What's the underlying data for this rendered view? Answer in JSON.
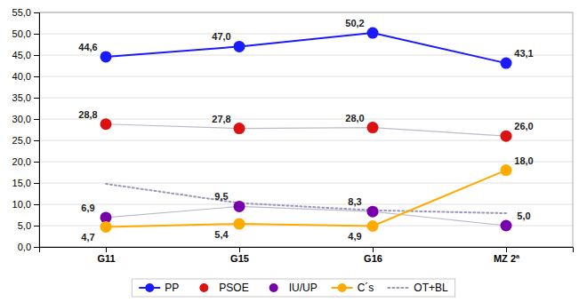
{
  "chart_data": {
    "type": "line",
    "categories": [
      "G11",
      "G15",
      "G16",
      "MZ 2ª"
    ],
    "series": [
      {
        "name": "PP",
        "color": "#1a1aff",
        "marker": "circle",
        "line_style": "solid",
        "data_labels": true,
        "values": [
          44.6,
          47.0,
          50.2,
          43.1
        ],
        "value_labels": [
          "44,6",
          "47,0",
          "50,2",
          "43,1"
        ]
      },
      {
        "name": "PSOE",
        "color": "#dd1111",
        "marker": "circle",
        "line_style": "connector",
        "data_labels": true,
        "values": [
          28.8,
          27.8,
          28.0,
          26.0
        ],
        "value_labels": [
          "28,8",
          "27,8",
          "28,0",
          "26,0"
        ]
      },
      {
        "name": "IU/UP",
        "color": "#7700aa",
        "marker": "circle",
        "line_style": "connector",
        "data_labels": true,
        "values": [
          6.9,
          9.5,
          8.3,
          5.0
        ],
        "value_labels": [
          "6,9",
          "9,5",
          "8,3",
          "5,0"
        ]
      },
      {
        "name": "C´s",
        "color": "#ffaa00",
        "marker": "circle",
        "line_style": "solid",
        "data_labels": true,
        "values": [
          4.7,
          5.4,
          4.9,
          18.0
        ],
        "value_labels": [
          "4,7",
          "5,4",
          "4,9",
          "18,0"
        ]
      },
      {
        "name": "OT+BL",
        "color": "#9999bb",
        "marker": "none",
        "line_style": "dotted",
        "data_labels": false,
        "values": [
          14.8,
          10.3,
          8.6,
          7.9
        ]
      }
    ],
    "ylim": [
      0.0,
      55.0
    ],
    "yticks": [
      {
        "value": 0.0,
        "label": "0,0"
      },
      {
        "value": 5.0,
        "label": "5,0"
      },
      {
        "value": 10.0,
        "label": "10,0"
      },
      {
        "value": 15.0,
        "label": "15,0"
      },
      {
        "value": 20.0,
        "label": "20,0"
      },
      {
        "value": 25.0,
        "label": "25,0"
      },
      {
        "value": 30.0,
        "label": "30,0"
      },
      {
        "value": 35.0,
        "label": "35,0"
      },
      {
        "value": 40.0,
        "label": "40,0"
      },
      {
        "value": 45.0,
        "label": "45,0"
      },
      {
        "value": 50.0,
        "label": "50,0"
      },
      {
        "value": 55.0,
        "label": "55,0"
      }
    ],
    "grid": true,
    "legend": "bottom"
  }
}
